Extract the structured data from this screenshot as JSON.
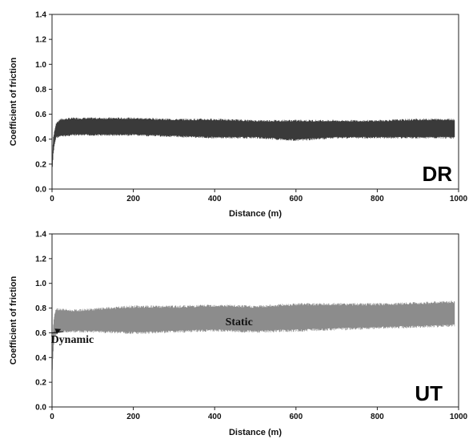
{
  "chart_data": [
    {
      "type": "area",
      "panel_label": "DR",
      "xlabel": "Distance (m)",
      "ylabel": "Coefficient of friction",
      "xlim": [
        0,
        1000
      ],
      "ylim": [
        0,
        1.4
      ],
      "x_ticks": [
        "0",
        "200",
        "400",
        "600",
        "800",
        "1000"
      ],
      "y_ticks": [
        "0.0",
        "0.2",
        "0.4",
        "0.6",
        "0.8",
        "1.0",
        "1.2",
        "1.4"
      ],
      "color": "#3a3a3a",
      "grid": false,
      "annotations": [],
      "series": [
        {
          "x": [
            0,
            3,
            6,
            10,
            20,
            50,
            100,
            200,
            300,
            400,
            500,
            600,
            650,
            700,
            800,
            900,
            990
          ],
          "y_min": [
            0.12,
            0.28,
            0.36,
            0.42,
            0.43,
            0.44,
            0.44,
            0.44,
            0.43,
            0.42,
            0.42,
            0.4,
            0.41,
            0.42,
            0.42,
            0.42,
            0.42
          ],
          "y_max": [
            0.2,
            0.4,
            0.46,
            0.52,
            0.55,
            0.56,
            0.56,
            0.56,
            0.55,
            0.55,
            0.54,
            0.54,
            0.54,
            0.54,
            0.54,
            0.55,
            0.55
          ]
        }
      ]
    },
    {
      "type": "area",
      "panel_label": "UT",
      "xlabel": "Distance (m)",
      "ylabel": "Coefficient of friction",
      "xlim": [
        0,
        1000
      ],
      "ylim": [
        0,
        1.4
      ],
      "x_ticks": [
        "0",
        "200",
        "400",
        "600",
        "800",
        "1000"
      ],
      "y_ticks": [
        "0.0",
        "0.2",
        "0.4",
        "0.6",
        "0.8",
        "1.0",
        "1.2",
        "1.4"
      ],
      "color": "#8c8c8c",
      "grid": false,
      "annotations": [
        {
          "text": "Static",
          "x": 460,
          "y": 0.66
        },
        {
          "text": "Dynamic",
          "x": 50,
          "y": 0.52,
          "arrow_to": [
            22,
            0.63
          ]
        }
      ],
      "series": [
        {
          "x": [
            0,
            3,
            6,
            10,
            20,
            50,
            100,
            200,
            300,
            400,
            500,
            600,
            700,
            800,
            900,
            990
          ],
          "y_min": [
            0.22,
            0.45,
            0.58,
            0.6,
            0.62,
            0.62,
            0.62,
            0.61,
            0.62,
            0.63,
            0.62,
            0.63,
            0.64,
            0.65,
            0.66,
            0.67
          ],
          "y_max": [
            0.35,
            0.65,
            0.74,
            0.78,
            0.78,
            0.77,
            0.78,
            0.8,
            0.8,
            0.81,
            0.8,
            0.82,
            0.82,
            0.82,
            0.83,
            0.84
          ]
        }
      ]
    }
  ]
}
